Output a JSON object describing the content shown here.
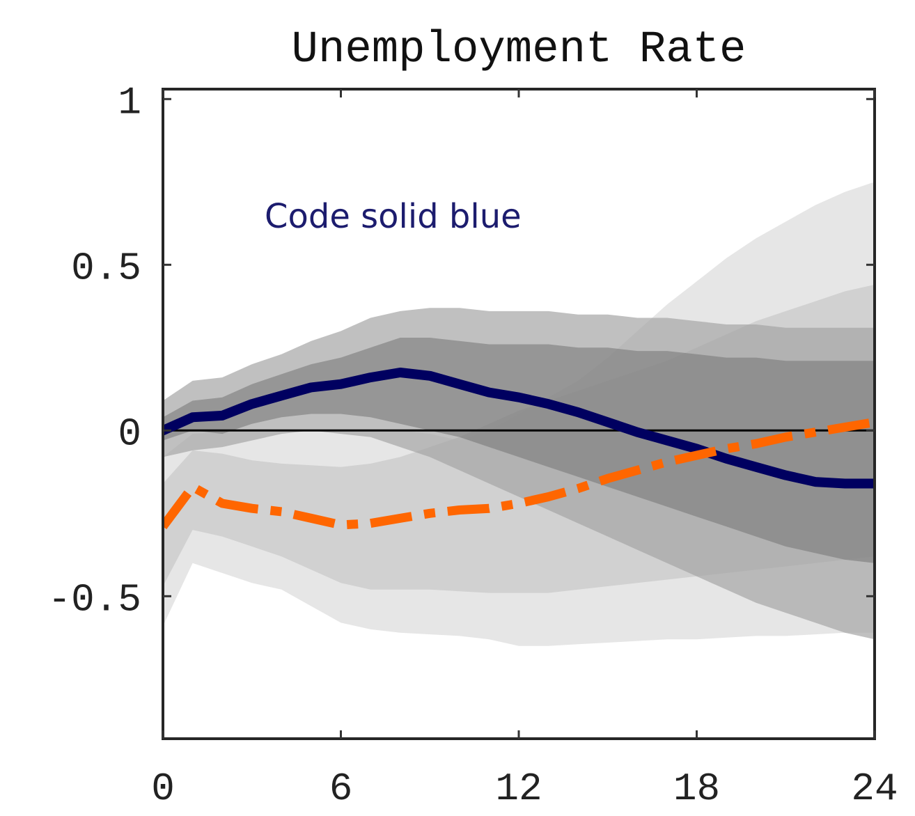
{
  "chart_data": {
    "type": "line",
    "title": "Unemployment Rate",
    "xlabel": "",
    "ylabel": "",
    "xlim": [
      0,
      24
    ],
    "ylim": [
      -0.93,
      1.03
    ],
    "xticks": [
      0,
      6,
      12,
      18,
      24
    ],
    "xtick_labels": [
      "0",
      "6",
      "12",
      "18",
      "24"
    ],
    "yticks": [
      1,
      0.5,
      0,
      -0.5
    ],
    "ytick_labels": [
      "1",
      "0.5",
      "0",
      "-0.5"
    ],
    "grid": false,
    "annotation": {
      "text": "Code solid blue",
      "x": 3.5,
      "y": 0.66,
      "color": "#1c1c6e"
    },
    "zero_line": 0,
    "bands": [
      {
        "group": "orange-outer",
        "color": "#dcdcdc",
        "opacity": 0.72,
        "x": [
          0,
          1,
          2,
          3,
          4,
          5,
          6,
          7,
          8,
          9,
          10,
          11,
          12,
          13,
          14,
          15,
          16,
          17,
          18,
          19,
          20,
          21,
          22,
          23,
          24
        ],
        "lower": [
          -0.59,
          -0.4,
          -0.43,
          -0.46,
          -0.48,
          -0.53,
          -0.58,
          -0.6,
          -0.61,
          -0.615,
          -0.62,
          -0.63,
          -0.65,
          -0.65,
          -0.645,
          -0.64,
          -0.635,
          -0.63,
          -0.63,
          -0.625,
          -0.62,
          -0.62,
          -0.615,
          -0.61,
          -0.61
        ],
        "upper": [
          -0.08,
          -0.01,
          -0.005,
          0.0,
          0.002,
          0.003,
          0.001,
          0.0,
          0.0,
          -0.01,
          -0.03,
          0.0,
          0.05,
          0.1,
          0.15,
          0.22,
          0.3,
          0.38,
          0.45,
          0.52,
          0.58,
          0.63,
          0.68,
          0.72,
          0.75
        ]
      },
      {
        "group": "orange-inner",
        "color": "#c9c9c9",
        "opacity": 0.72,
        "x": [
          0,
          1,
          2,
          3,
          4,
          5,
          6,
          7,
          8,
          9,
          10,
          11,
          12,
          13,
          14,
          15,
          16,
          17,
          18,
          19,
          20,
          21,
          22,
          23,
          24
        ],
        "lower": [
          -0.47,
          -0.3,
          -0.32,
          -0.35,
          -0.38,
          -0.42,
          -0.46,
          -0.48,
          -0.48,
          -0.48,
          -0.485,
          -0.49,
          -0.49,
          -0.49,
          -0.48,
          -0.47,
          -0.46,
          -0.45,
          -0.44,
          -0.43,
          -0.42,
          -0.41,
          -0.4,
          -0.39,
          -0.38
        ],
        "upper": [
          -0.16,
          -0.06,
          -0.07,
          -0.09,
          -0.1,
          -0.105,
          -0.11,
          -0.1,
          -0.08,
          -0.05,
          -0.02,
          0.02,
          0.06,
          0.09,
          0.12,
          0.15,
          0.18,
          0.21,
          0.25,
          0.29,
          0.33,
          0.36,
          0.39,
          0.42,
          0.44
        ]
      },
      {
        "group": "blue-outer",
        "color": "#a5a5a5",
        "opacity": 0.7,
        "x": [
          0,
          1,
          2,
          3,
          4,
          5,
          6,
          7,
          8,
          9,
          10,
          11,
          12,
          13,
          14,
          15,
          16,
          17,
          18,
          19,
          20,
          21,
          22,
          23,
          24
        ],
        "lower": [
          -0.08,
          -0.06,
          -0.05,
          -0.03,
          -0.01,
          0.0,
          -0.01,
          -0.02,
          -0.05,
          -0.08,
          -0.12,
          -0.16,
          -0.2,
          -0.24,
          -0.28,
          -0.32,
          -0.36,
          -0.4,
          -0.44,
          -0.48,
          -0.52,
          -0.55,
          -0.58,
          -0.61,
          -0.63
        ],
        "upper": [
          0.09,
          0.15,
          0.16,
          0.2,
          0.23,
          0.27,
          0.3,
          0.34,
          0.36,
          0.37,
          0.37,
          0.36,
          0.36,
          0.36,
          0.35,
          0.35,
          0.34,
          0.34,
          0.33,
          0.32,
          0.32,
          0.31,
          0.31,
          0.31,
          0.31
        ]
      },
      {
        "group": "blue-inner",
        "color": "#7a7a7a",
        "opacity": 0.6,
        "x": [
          0,
          1,
          2,
          3,
          4,
          5,
          6,
          7,
          8,
          9,
          10,
          11,
          12,
          13,
          14,
          15,
          16,
          17,
          18,
          19,
          20,
          21,
          22,
          23,
          24
        ],
        "lower": [
          -0.03,
          0.0,
          -0.01,
          0.02,
          0.04,
          0.05,
          0.05,
          0.04,
          0.02,
          0.0,
          -0.02,
          -0.05,
          -0.08,
          -0.11,
          -0.14,
          -0.17,
          -0.2,
          -0.23,
          -0.26,
          -0.29,
          -0.32,
          -0.35,
          -0.37,
          -0.39,
          -0.4
        ],
        "upper": [
          0.04,
          0.09,
          0.1,
          0.14,
          0.17,
          0.2,
          0.22,
          0.25,
          0.28,
          0.28,
          0.27,
          0.26,
          0.26,
          0.26,
          0.25,
          0.25,
          0.24,
          0.24,
          0.23,
          0.22,
          0.22,
          0.21,
          0.21,
          0.21,
          0.21
        ]
      }
    ],
    "series": [
      {
        "style": "solid",
        "color": "#000060",
        "x": [
          0,
          1,
          2,
          3,
          4,
          5,
          6,
          7,
          8,
          9,
          10,
          11,
          12,
          13,
          14,
          15,
          16,
          17,
          18,
          19,
          20,
          21,
          22,
          23,
          24
        ],
        "values": [
          0.0,
          0.04,
          0.045,
          0.08,
          0.105,
          0.13,
          0.14,
          0.16,
          0.175,
          0.165,
          0.14,
          0.115,
          0.1,
          0.08,
          0.055,
          0.025,
          -0.005,
          -0.03,
          -0.055,
          -0.085,
          -0.11,
          -0.135,
          -0.155,
          -0.16,
          -0.16
        ]
      },
      {
        "style": "dash-dot",
        "color": "#ff6600",
        "x": [
          0,
          1,
          2,
          3,
          4,
          5,
          6,
          7,
          8,
          9,
          10,
          11,
          12,
          13,
          14,
          15,
          16,
          17,
          18,
          19,
          20,
          21,
          22,
          23,
          24
        ],
        "values": [
          -0.29,
          -0.17,
          -0.22,
          -0.235,
          -0.245,
          -0.265,
          -0.285,
          -0.28,
          -0.265,
          -0.25,
          -0.24,
          -0.235,
          -0.22,
          -0.2,
          -0.175,
          -0.145,
          -0.12,
          -0.095,
          -0.075,
          -0.055,
          -0.04,
          -0.02,
          -0.005,
          0.01,
          0.025
        ]
      }
    ]
  }
}
